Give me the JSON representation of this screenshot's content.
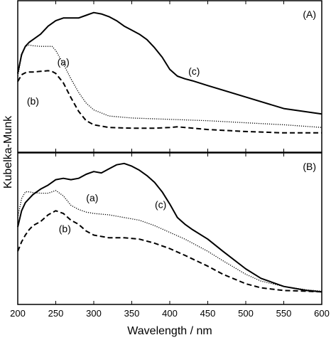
{
  "chart_data": {
    "type": "line",
    "xlabel": "Wavelength / nm",
    "ylabel": "Kubelka-Munk",
    "xlim": [
      200,
      600
    ],
    "xticks": [
      200,
      250,
      300,
      350,
      400,
      450,
      500,
      550,
      600
    ],
    "ylim": [
      0,
      1
    ],
    "grid": false,
    "panels": [
      {
        "label": "(A)",
        "series": [
          {
            "id": "c",
            "style": "solid",
            "x": [
              200,
              205,
              210,
              215,
              220,
              230,
              240,
              250,
              260,
              270,
              280,
              290,
              300,
              310,
              320,
              330,
              340,
              350,
              360,
              370,
              380,
              390,
              400,
              410,
              420,
              430,
              450,
              500,
              550,
              600
            ],
            "y": [
              0.52,
              0.66,
              0.72,
              0.75,
              0.77,
              0.81,
              0.87,
              0.91,
              0.93,
              0.93,
              0.93,
              0.95,
              0.97,
              0.96,
              0.94,
              0.91,
              0.87,
              0.84,
              0.81,
              0.77,
              0.71,
              0.64,
              0.55,
              0.5,
              0.48,
              0.465,
              0.43,
              0.345,
              0.26,
              0.22
            ]
          },
          {
            "id": "a",
            "style": "dotted",
            "x": [
              200,
              205,
              210,
              215,
              220,
              230,
              240,
              245,
              250,
              260,
              270,
              280,
              290,
              300,
              320,
              350,
              400,
              450,
              500,
              550,
              600
            ],
            "y": [
              0.5,
              0.65,
              0.72,
              0.73,
              0.725,
              0.72,
              0.72,
              0.72,
              0.69,
              0.59,
              0.48,
              0.38,
              0.3,
              0.25,
              0.205,
              0.19,
              0.18,
              0.17,
              0.155,
              0.14,
              0.12
            ]
          },
          {
            "id": "b",
            "style": "dashed",
            "x": [
              200,
              205,
              210,
              215,
              220,
              230,
              240,
              245,
              250,
              260,
              270,
              280,
              290,
              300,
              320,
              350,
              380,
              400,
              410,
              420,
              450,
              500,
              550,
              600
            ],
            "y": [
              0.46,
              0.51,
              0.525,
              0.53,
              0.53,
              0.535,
              0.54,
              0.535,
              0.52,
              0.45,
              0.34,
              0.24,
              0.17,
              0.14,
              0.12,
              0.115,
              0.115,
              0.12,
              0.125,
              0.12,
              0.105,
              0.09,
              0.08,
              0.08
            ]
          }
        ],
        "annotations": [
          {
            "text": "(a)",
            "x": 260,
            "y": 0.58
          },
          {
            "text": "(b)",
            "x": 220,
            "y": 0.29
          },
          {
            "text": "(c)",
            "x": 432,
            "y": 0.51
          }
        ]
      },
      {
        "label": "(B)",
        "series": [
          {
            "id": "c",
            "style": "solid",
            "x": [
              200,
              205,
              210,
              215,
              220,
              230,
              240,
              250,
              260,
              270,
              280,
              290,
              300,
              310,
              320,
              330,
              340,
              350,
              360,
              370,
              380,
              390,
              400,
              410,
              420,
              430,
              450,
              470,
              500,
              520,
              550,
              580,
              600
            ],
            "y": [
              0.51,
              0.63,
              0.69,
              0.72,
              0.75,
              0.79,
              0.82,
              0.86,
              0.87,
              0.86,
              0.87,
              0.9,
              0.92,
              0.91,
              0.94,
              0.97,
              0.98,
              0.96,
              0.93,
              0.89,
              0.84,
              0.77,
              0.68,
              0.58,
              0.53,
              0.49,
              0.42,
              0.33,
              0.2,
              0.13,
              0.07,
              0.04,
              0.03
            ]
          },
          {
            "id": "a",
            "style": "dotted",
            "x": [
              200,
              205,
              210,
              215,
              220,
              230,
              240,
              250,
              260,
              270,
              280,
              290,
              300,
              320,
              340,
              360,
              380,
              400,
              420,
              450,
              470,
              500,
              520,
              550,
              580,
              600
            ],
            "y": [
              0.58,
              0.72,
              0.77,
              0.77,
              0.765,
              0.76,
              0.76,
              0.78,
              0.74,
              0.67,
              0.64,
              0.62,
              0.61,
              0.6,
              0.58,
              0.56,
              0.52,
              0.47,
              0.42,
              0.33,
              0.26,
              0.16,
              0.11,
              0.07,
              0.045,
              0.035
            ]
          },
          {
            "id": "b",
            "style": "dashed",
            "x": [
              200,
              205,
              210,
              215,
              220,
              230,
              240,
              250,
              260,
              270,
              280,
              290,
              300,
              320,
              340,
              360,
              380,
              400,
              420,
              450,
              470,
              500,
              520,
              550,
              580,
              600
            ],
            "y": [
              0.33,
              0.4,
              0.45,
              0.49,
              0.52,
              0.55,
              0.6,
              0.63,
              0.61,
              0.56,
              0.53,
              0.48,
              0.45,
              0.43,
              0.43,
              0.42,
              0.39,
              0.35,
              0.3,
              0.22,
              0.16,
              0.09,
              0.06,
              0.04,
              0.035,
              0.03
            ]
          }
        ],
        "annotations": [
          {
            "text": "(a)",
            "x": 298,
            "y": 0.7
          },
          {
            "text": "(b)",
            "x": 262,
            "y": 0.47
          },
          {
            "text": "(c)",
            "x": 388,
            "y": 0.65
          }
        ]
      }
    ]
  }
}
